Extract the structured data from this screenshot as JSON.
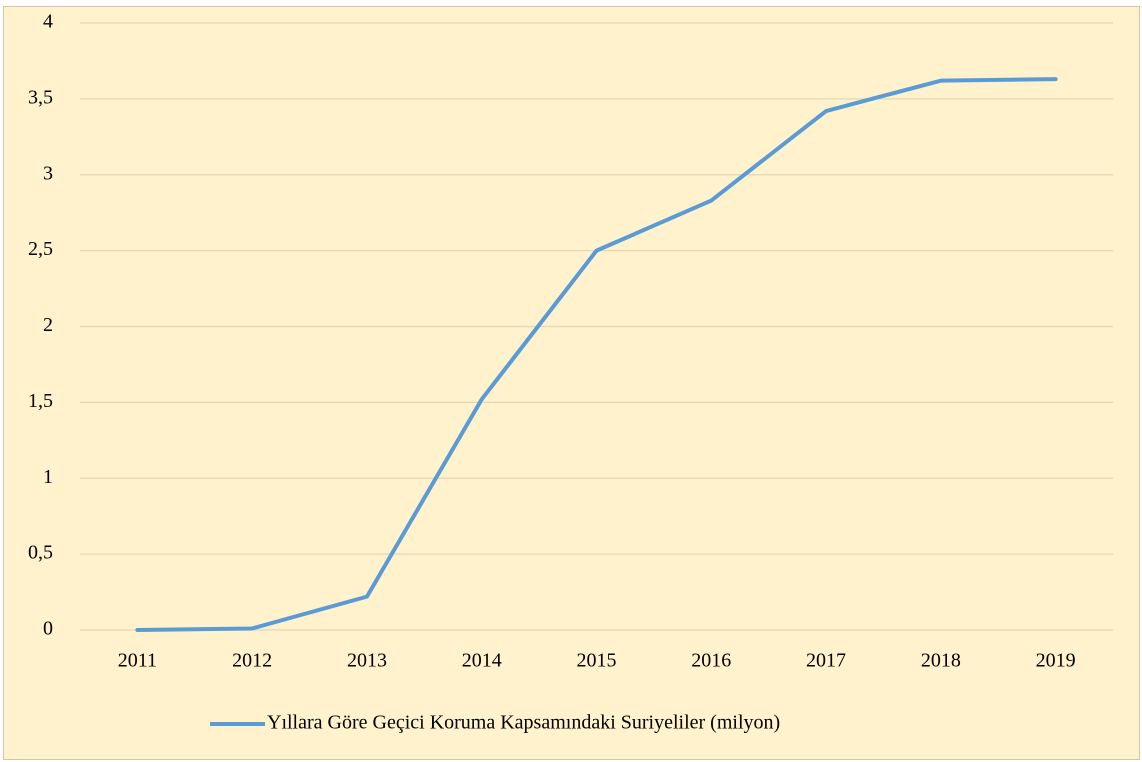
{
  "chart_data": {
    "type": "line",
    "categories": [
      "2011",
      "2012",
      "2013",
      "2014",
      "2015",
      "2016",
      "2017",
      "2018",
      "2019"
    ],
    "series": [
      {
        "name": "Yıllara Göre Geçici Koruma Kapsamındaki Suriyeliler (milyon)",
        "color": "#5b9bd5",
        "values": [
          0,
          0.01,
          0.22,
          1.52,
          2.5,
          2.83,
          3.42,
          3.62,
          3.63
        ]
      }
    ],
    "ylim": [
      0,
      4
    ],
    "yticks": [
      0,
      {
        "value": 0.5,
        "label": "0,5"
      },
      1,
      {
        "value": 1.5,
        "label": "1,5"
      },
      2,
      {
        "value": 2.5,
        "label": "2,5"
      },
      3,
      {
        "value": 3.5,
        "label": "3,5"
      },
      4
    ],
    "grid": true,
    "legend": "bottom"
  }
}
